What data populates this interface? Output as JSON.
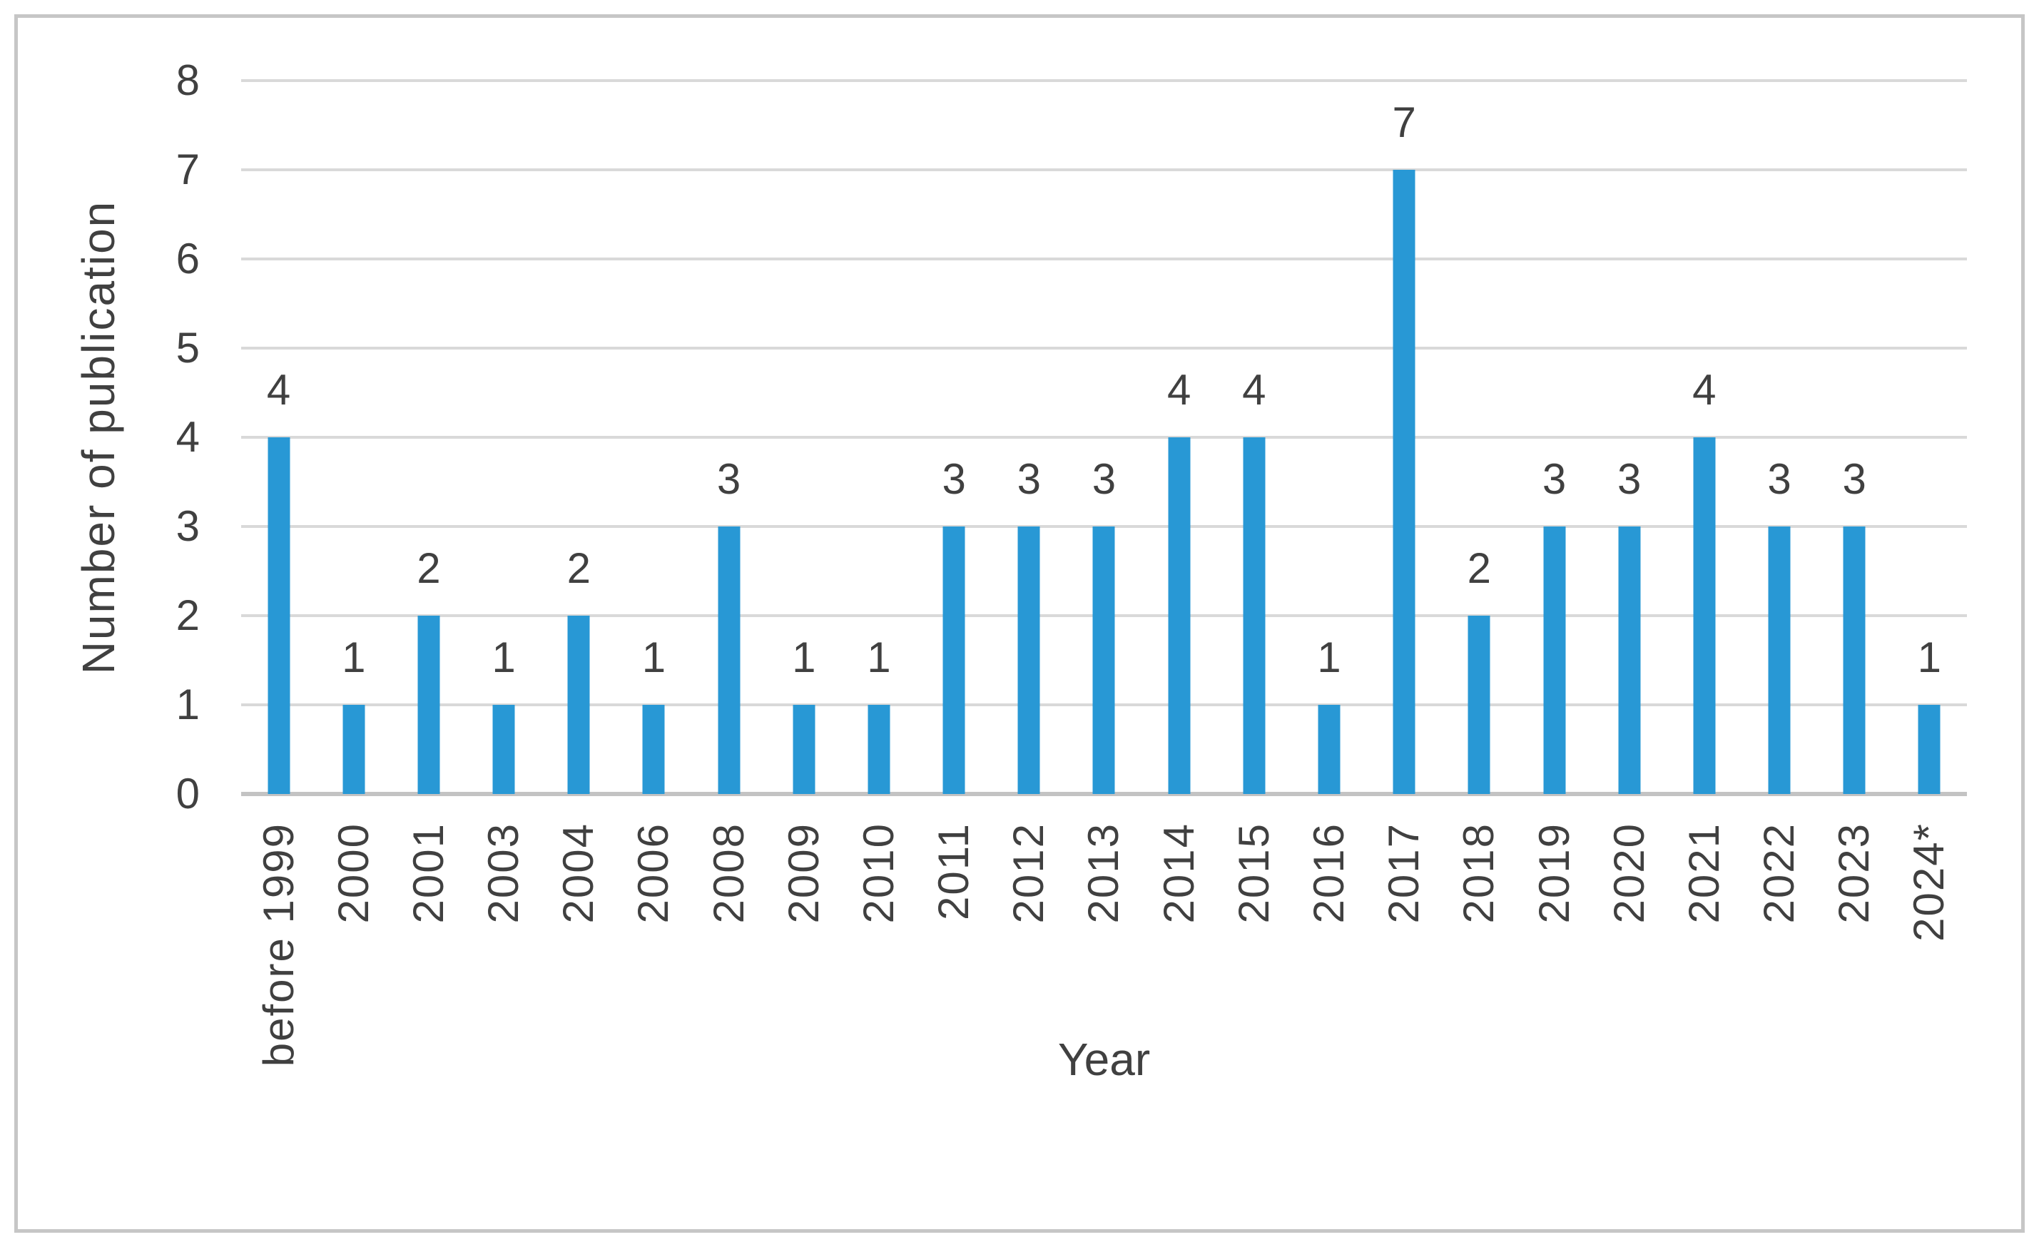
{
  "chart_data": {
    "type": "bar",
    "title": "",
    "categories": [
      "before 1999",
      "2000",
      "2001",
      "2003",
      "2004",
      "2006",
      "2008",
      "2009",
      "2010",
      "2011",
      "2012",
      "2013",
      "2014",
      "2015",
      "2016",
      "2017",
      "2018",
      "2019",
      "2020",
      "2021",
      "2022",
      "2023",
      "2024*"
    ],
    "values": [
      4,
      1,
      2,
      1,
      2,
      1,
      3,
      1,
      1,
      3,
      3,
      3,
      4,
      4,
      1,
      7,
      2,
      3,
      3,
      4,
      3,
      3,
      1
    ],
    "xlabel": "Year",
    "ylabel": "Number of publication",
    "ylim": [
      0,
      8
    ],
    "ytick_step": 1,
    "yticks": [
      0,
      1,
      2,
      3,
      4,
      5,
      6,
      7,
      8
    ],
    "grid": "horizontal",
    "legend": "none",
    "data_labels": true
  },
  "colors": {
    "bar": "#2898d5",
    "grid": "#d9d9d9",
    "axis": "#c3c3c3",
    "text": "#404040",
    "frame": "#c6c6c6"
  }
}
